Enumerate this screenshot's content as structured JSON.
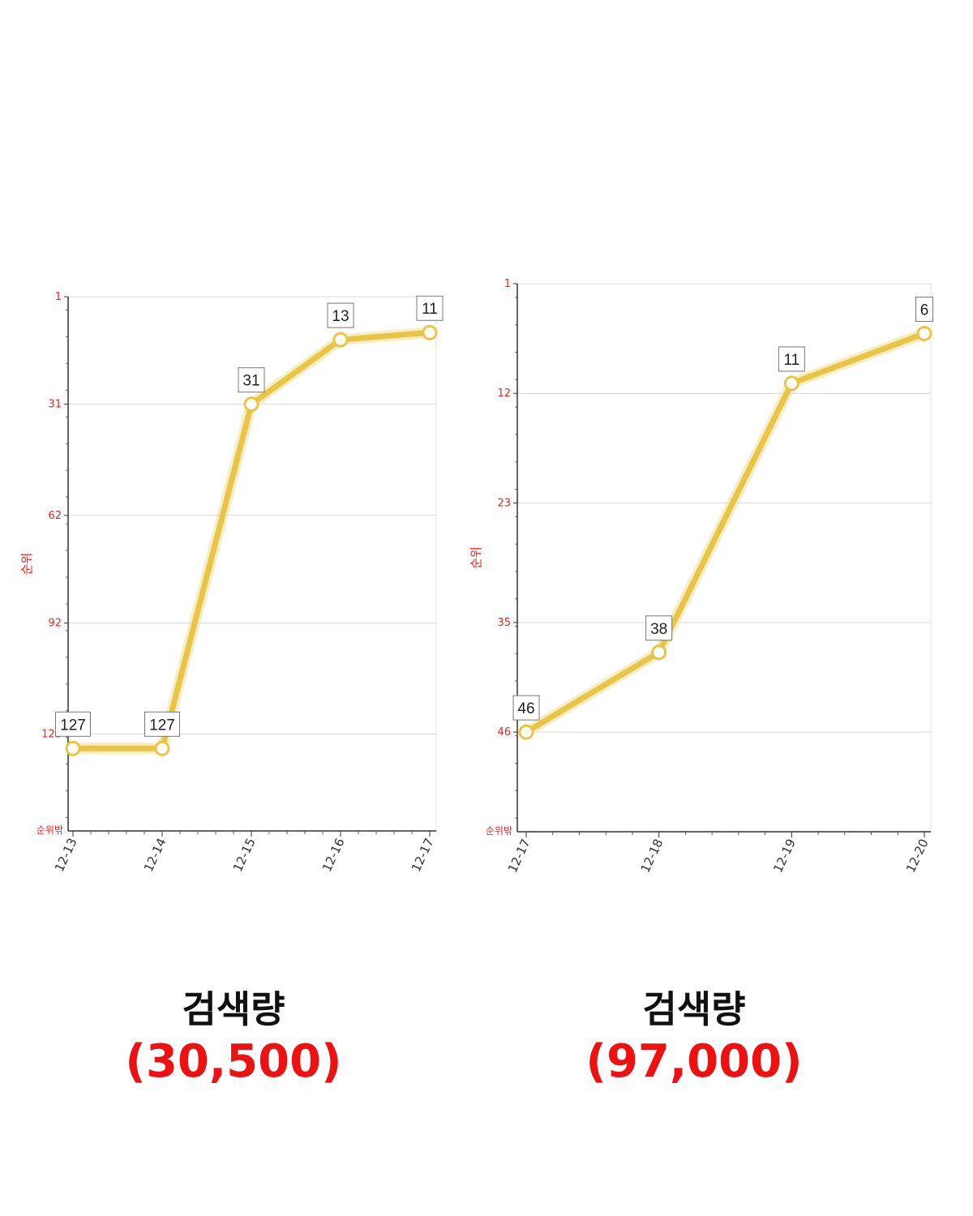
{
  "chart_data": [
    {
      "type": "line",
      "x": [
        "12-13",
        "12-14",
        "12-15",
        "12-16",
        "12-17"
      ],
      "series": [
        {
          "values": [
            127,
            127,
            31,
            13,
            11
          ]
        }
      ],
      "data_labels": [
        "127",
        "127",
        "31",
        "13",
        "11"
      ],
      "ylabel": "순위",
      "y_ticks": [
        "1",
        "31",
        "62",
        "92",
        "123"
      ],
      "y_bottom_label": "순위밖",
      "ylim": [
        1,
        150
      ],
      "y_inverted": true,
      "grid": true,
      "line_color": "#e8c547",
      "axis_label_color": "#ee2222"
    },
    {
      "type": "line",
      "x": [
        "12-17",
        "12-18",
        "12-19",
        "12-20"
      ],
      "series": [
        {
          "values": [
            46,
            38,
            11,
            6
          ]
        }
      ],
      "data_labels": [
        "46",
        "38",
        "11",
        "6"
      ],
      "ylabel": "순위",
      "y_ticks": [
        "1",
        "12",
        "23",
        "35",
        "46"
      ],
      "y_bottom_label": "순위밖",
      "ylim": [
        1,
        56
      ],
      "y_inverted": true,
      "grid": true,
      "line_color": "#e8c547",
      "axis_label_color": "#ee2222"
    }
  ],
  "captions": [
    {
      "label": "검색량",
      "value": "(30,500)"
    },
    {
      "label": "검색량",
      "value": "(97,000)"
    }
  ]
}
